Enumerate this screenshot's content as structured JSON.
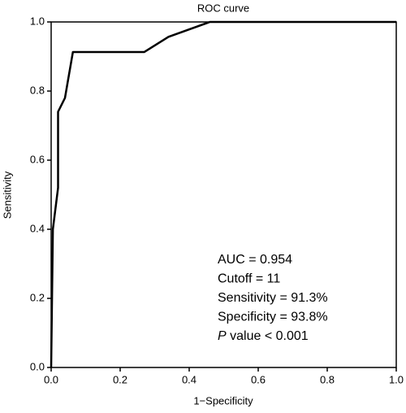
{
  "chart_data": {
    "type": "line",
    "title": "ROC curve",
    "x_label": "1−Specificity",
    "y_label": "Sensitivity",
    "x": [
      0,
      0.005,
      0.02,
      0.02,
      0.04,
      0.063,
      0.27,
      0.34,
      0.46,
      1
    ],
    "y": [
      0,
      0.4,
      0.52,
      0.74,
      0.78,
      0.913,
      0.913,
      0.957,
      1,
      1
    ],
    "color": "#000000",
    "xlim": [
      0,
      1
    ],
    "ylim": [
      0,
      1
    ],
    "xticks": [
      {
        "value": 0,
        "label": "0.0"
      },
      0.2,
      0.4,
      0.6,
      0.8,
      {
        "value": 1,
        "label": "1.0"
      }
    ],
    "yticks": [
      {
        "value": 0,
        "label": "0.0"
      },
      0.2,
      0.4,
      0.6,
      0.8,
      {
        "value": 1,
        "label": "1.0"
      }
    ],
    "annotations": [
      [
        "AUC = 0.954"
      ],
      [
        "Cutoff = 11"
      ],
      [
        "Sensitivity = 91.3%"
      ],
      [
        "Specificity = 93.8%"
      ],
      [
        "P",
        " value < 0.001"
      ]
    ]
  }
}
